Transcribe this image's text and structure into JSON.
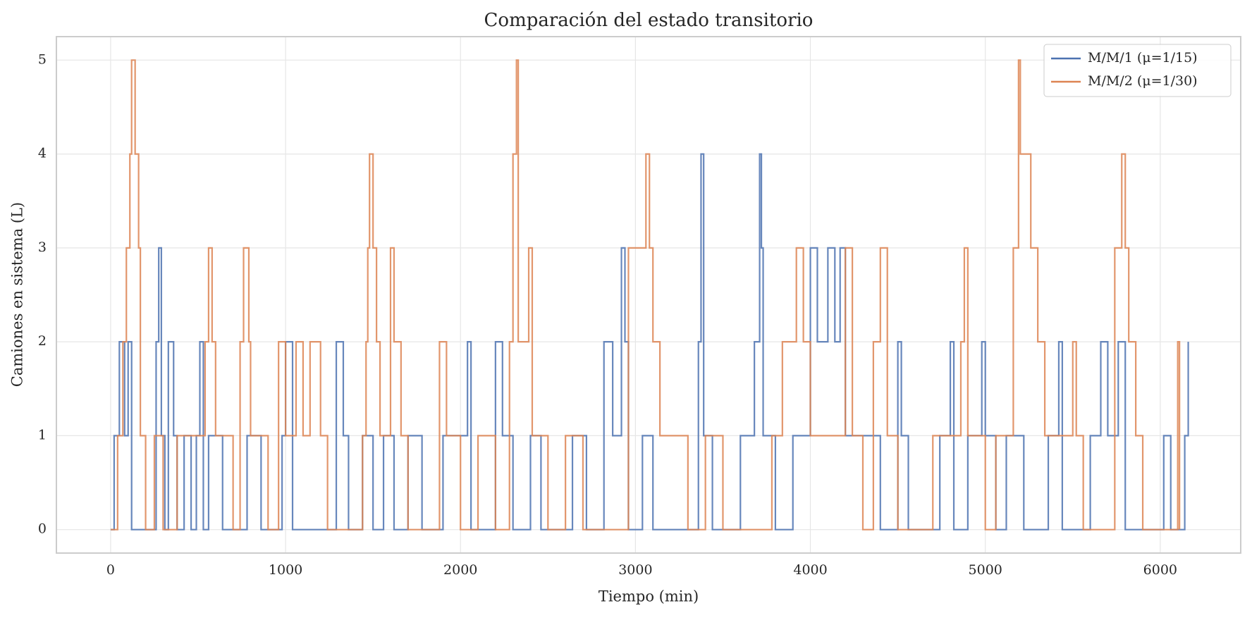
{
  "chart_data": {
    "type": "line",
    "step": true,
    "title": "Comparación del estado transitorio",
    "x_label": "Tiempo (min)",
    "y_label": "Camiones en sistema (L)",
    "xlim": [
      -310,
      6460
    ],
    "ylim": [
      -0.25,
      5.25
    ],
    "xticks": [
      0,
      1000,
      2000,
      3000,
      4000,
      5000,
      6000
    ],
    "yticks": [
      0,
      1,
      2,
      3,
      4,
      5
    ],
    "grid": true,
    "legend": "upper right",
    "series": [
      {
        "name": "M/M/1 (μ=1/15)",
        "color": "#4c72b0",
        "x": [
          0,
          20,
          50,
          80,
          100,
          120,
          260,
          275,
          290,
          310,
          330,
          360,
          380,
          420,
          460,
          490,
          510,
          530,
          560,
          640,
          780,
          860,
          980,
          1000,
          1040,
          1290,
          1330,
          1360,
          1440,
          1500,
          1560,
          1620,
          1700,
          1780,
          1900,
          2040,
          2060,
          2200,
          2240,
          2300,
          2400,
          2460,
          2640,
          2720,
          2820,
          2870,
          2920,
          2940,
          2960,
          3040,
          3100,
          3360,
          3375,
          3390,
          3440,
          3600,
          3680,
          3710,
          3720,
          3730,
          3800,
          3900,
          4000,
          4040,
          4100,
          4140,
          4170,
          4200,
          4400,
          4500,
          4520,
          4560,
          4740,
          4800,
          4820,
          4900,
          4980,
          5000,
          5060,
          5120,
          5220,
          5360,
          5420,
          5440,
          5600,
          5660,
          5700,
          5760,
          5800,
          6020,
          6060,
          6140,
          6160
        ],
        "values": [
          0,
          1,
          2,
          1,
          2,
          0,
          2,
          3,
          1,
          0,
          2,
          1,
          0,
          1,
          0,
          1,
          2,
          0,
          1,
          0,
          1,
          0,
          1,
          2,
          0,
          2,
          1,
          0,
          1,
          0,
          1,
          0,
          1,
          0,
          1,
          2,
          0,
          2,
          1,
          0,
          1,
          0,
          1,
          0,
          2,
          1,
          3,
          2,
          0,
          1,
          0,
          2,
          4,
          1,
          0,
          1,
          2,
          4,
          3,
          1,
          0,
          1,
          3,
          2,
          3,
          2,
          3,
          1,
          0,
          2,
          1,
          0,
          1,
          2,
          0,
          1,
          2,
          1,
          0,
          1,
          0,
          1,
          2,
          0,
          1,
          2,
          1,
          2,
          0,
          1,
          0,
          1,
          2
        ]
      },
      {
        "name": "M/M/2 (μ=1/30)",
        "color": "#dd8452",
        "x": [
          0,
          40,
          70,
          90,
          110,
          120,
          140,
          160,
          170,
          200,
          250,
          300,
          380,
          540,
          560,
          580,
          600,
          700,
          740,
          760,
          790,
          800,
          900,
          960,
          1000,
          1060,
          1100,
          1140,
          1200,
          1240,
          1440,
          1460,
          1470,
          1480,
          1500,
          1520,
          1540,
          1600,
          1620,
          1660,
          1700,
          1880,
          1920,
          2000,
          2100,
          2200,
          2280,
          2300,
          2320,
          2330,
          2390,
          2410,
          2500,
          2600,
          2700,
          2960,
          3060,
          3080,
          3100,
          3140,
          3300,
          3400,
          3500,
          3780,
          3840,
          3920,
          3960,
          4000,
          4200,
          4240,
          4300,
          4360,
          4400,
          4440,
          4500,
          4700,
          4860,
          4880,
          4900,
          5000,
          5060,
          5160,
          5190,
          5200,
          5260,
          5300,
          5340,
          5500,
          5520,
          5560,
          5740,
          5780,
          5800,
          5820,
          5860,
          5900,
          6100,
          6110
        ],
        "values": [
          0,
          1,
          2,
          3,
          4,
          5,
          4,
          3,
          1,
          0,
          1,
          0,
          1,
          2,
          3,
          2,
          1,
          0,
          2,
          3,
          2,
          1,
          0,
          2,
          1,
          2,
          1,
          2,
          1,
          0,
          1,
          2,
          3,
          4,
          3,
          2,
          1,
          3,
          2,
          1,
          0,
          2,
          1,
          0,
          1,
          0,
          2,
          4,
          5,
          2,
          3,
          1,
          0,
          1,
          0,
          3,
          4,
          3,
          2,
          1,
          0,
          1,
          0,
          1,
          2,
          3,
          2,
          1,
          3,
          1,
          0,
          2,
          3,
          1,
          0,
          1,
          2,
          3,
          1,
          0,
          1,
          3,
          5,
          4,
          3,
          2,
          1,
          2,
          1,
          0,
          3,
          4,
          3,
          2,
          1,
          0,
          2,
          0
        ]
      }
    ]
  }
}
